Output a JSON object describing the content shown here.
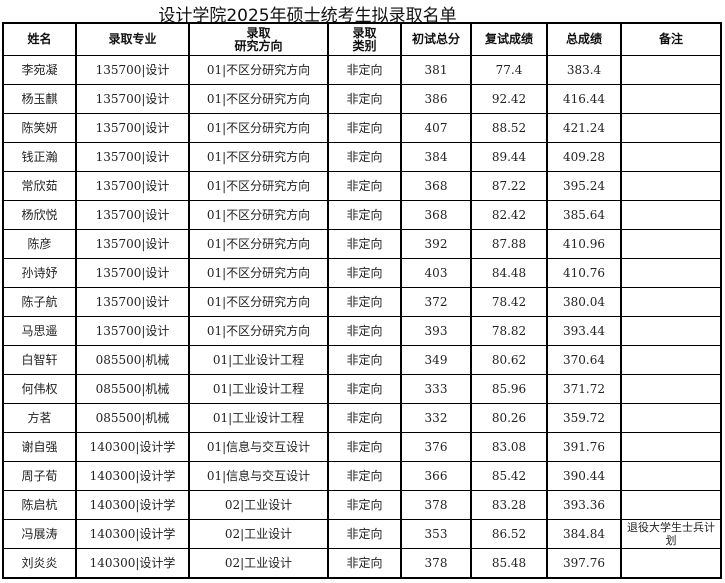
{
  "title": "设计学院2025年硕士统考生拟录取名单",
  "headers": [
    "姓名",
    "录取专业",
    "录取\n研究方向",
    "录取\n类别",
    "初试总分",
    "复试成绩",
    "总成绩",
    "备注"
  ],
  "rows": [
    [
      "李宛凝",
      "135700|设计",
      "01|不区分研究方向",
      "非定向",
      "381",
      "77.4",
      "383.4",
      ""
    ],
    [
      "杨玉麒",
      "135700|设计",
      "01|不区分研究方向",
      "非定向",
      "386",
      "92.42",
      "416.44",
      ""
    ],
    [
      "陈笑妍",
      "135700|设计",
      "01|不区分研究方向",
      "非定向",
      "407",
      "88.52",
      "421.24",
      ""
    ],
    [
      "钱正瀚",
      "135700|设计",
      "01|不区分研究方向",
      "非定向",
      "384",
      "89.44",
      "409.28",
      ""
    ],
    [
      "常欣茹",
      "135700|设计",
      "01|不区分研究方向",
      "非定向",
      "368",
      "87.22",
      "395.24",
      ""
    ],
    [
      "杨欣悦",
      "135700|设计",
      "01|不区分研究方向",
      "非定向",
      "368",
      "82.42",
      "385.64",
      ""
    ],
    [
      "陈彦",
      "135700|设计",
      "01|不区分研究方向",
      "非定向",
      "392",
      "87.88",
      "410.96",
      ""
    ],
    [
      "孙诗妤",
      "135700|设计",
      "01|不区分研究方向",
      "非定向",
      "403",
      "84.48",
      "410.76",
      ""
    ],
    [
      "陈子航",
      "135700|设计",
      "01|不区分研究方向",
      "非定向",
      "372",
      "78.42",
      "380.04",
      ""
    ],
    [
      "马思遥",
      "135700|设计",
      "01|不区分研究方向",
      "非定向",
      "393",
      "78.82",
      "393.44",
      ""
    ],
    [
      "白智轩",
      "085500|机械",
      "01|工业设计工程",
      "非定向",
      "349",
      "80.62",
      "370.64",
      ""
    ],
    [
      "何伟权",
      "085500|机械",
      "01|工业设计工程",
      "非定向",
      "333",
      "85.96",
      "371.72",
      ""
    ],
    [
      "方茗",
      "085500|机械",
      "01|工业设计工程",
      "非定向",
      "332",
      "80.26",
      "359.72",
      ""
    ],
    [
      "谢自强",
      "140300|设计学",
      "01|信息与交互设计",
      "非定向",
      "376",
      "83.08",
      "391.76",
      ""
    ],
    [
      "周子荀",
      "140300|设计学",
      "01|信息与交互设计",
      "非定向",
      "366",
      "85.42",
      "390.44",
      ""
    ],
    [
      "陈启杭",
      "140300|设计学",
      "02|工业设计",
      "非定向",
      "378",
      "83.28",
      "393.36",
      ""
    ],
    [
      "冯展涛",
      "140300|设计学",
      "02|工业设计",
      "非定向",
      "353",
      "86.52",
      "384.84",
      "退役大学生士兵计划"
    ],
    [
      "刘炎炎",
      "140300|设计学",
      "02|工业设计",
      "非定向",
      "378",
      "85.48",
      "397.76",
      ""
    ]
  ]
}
